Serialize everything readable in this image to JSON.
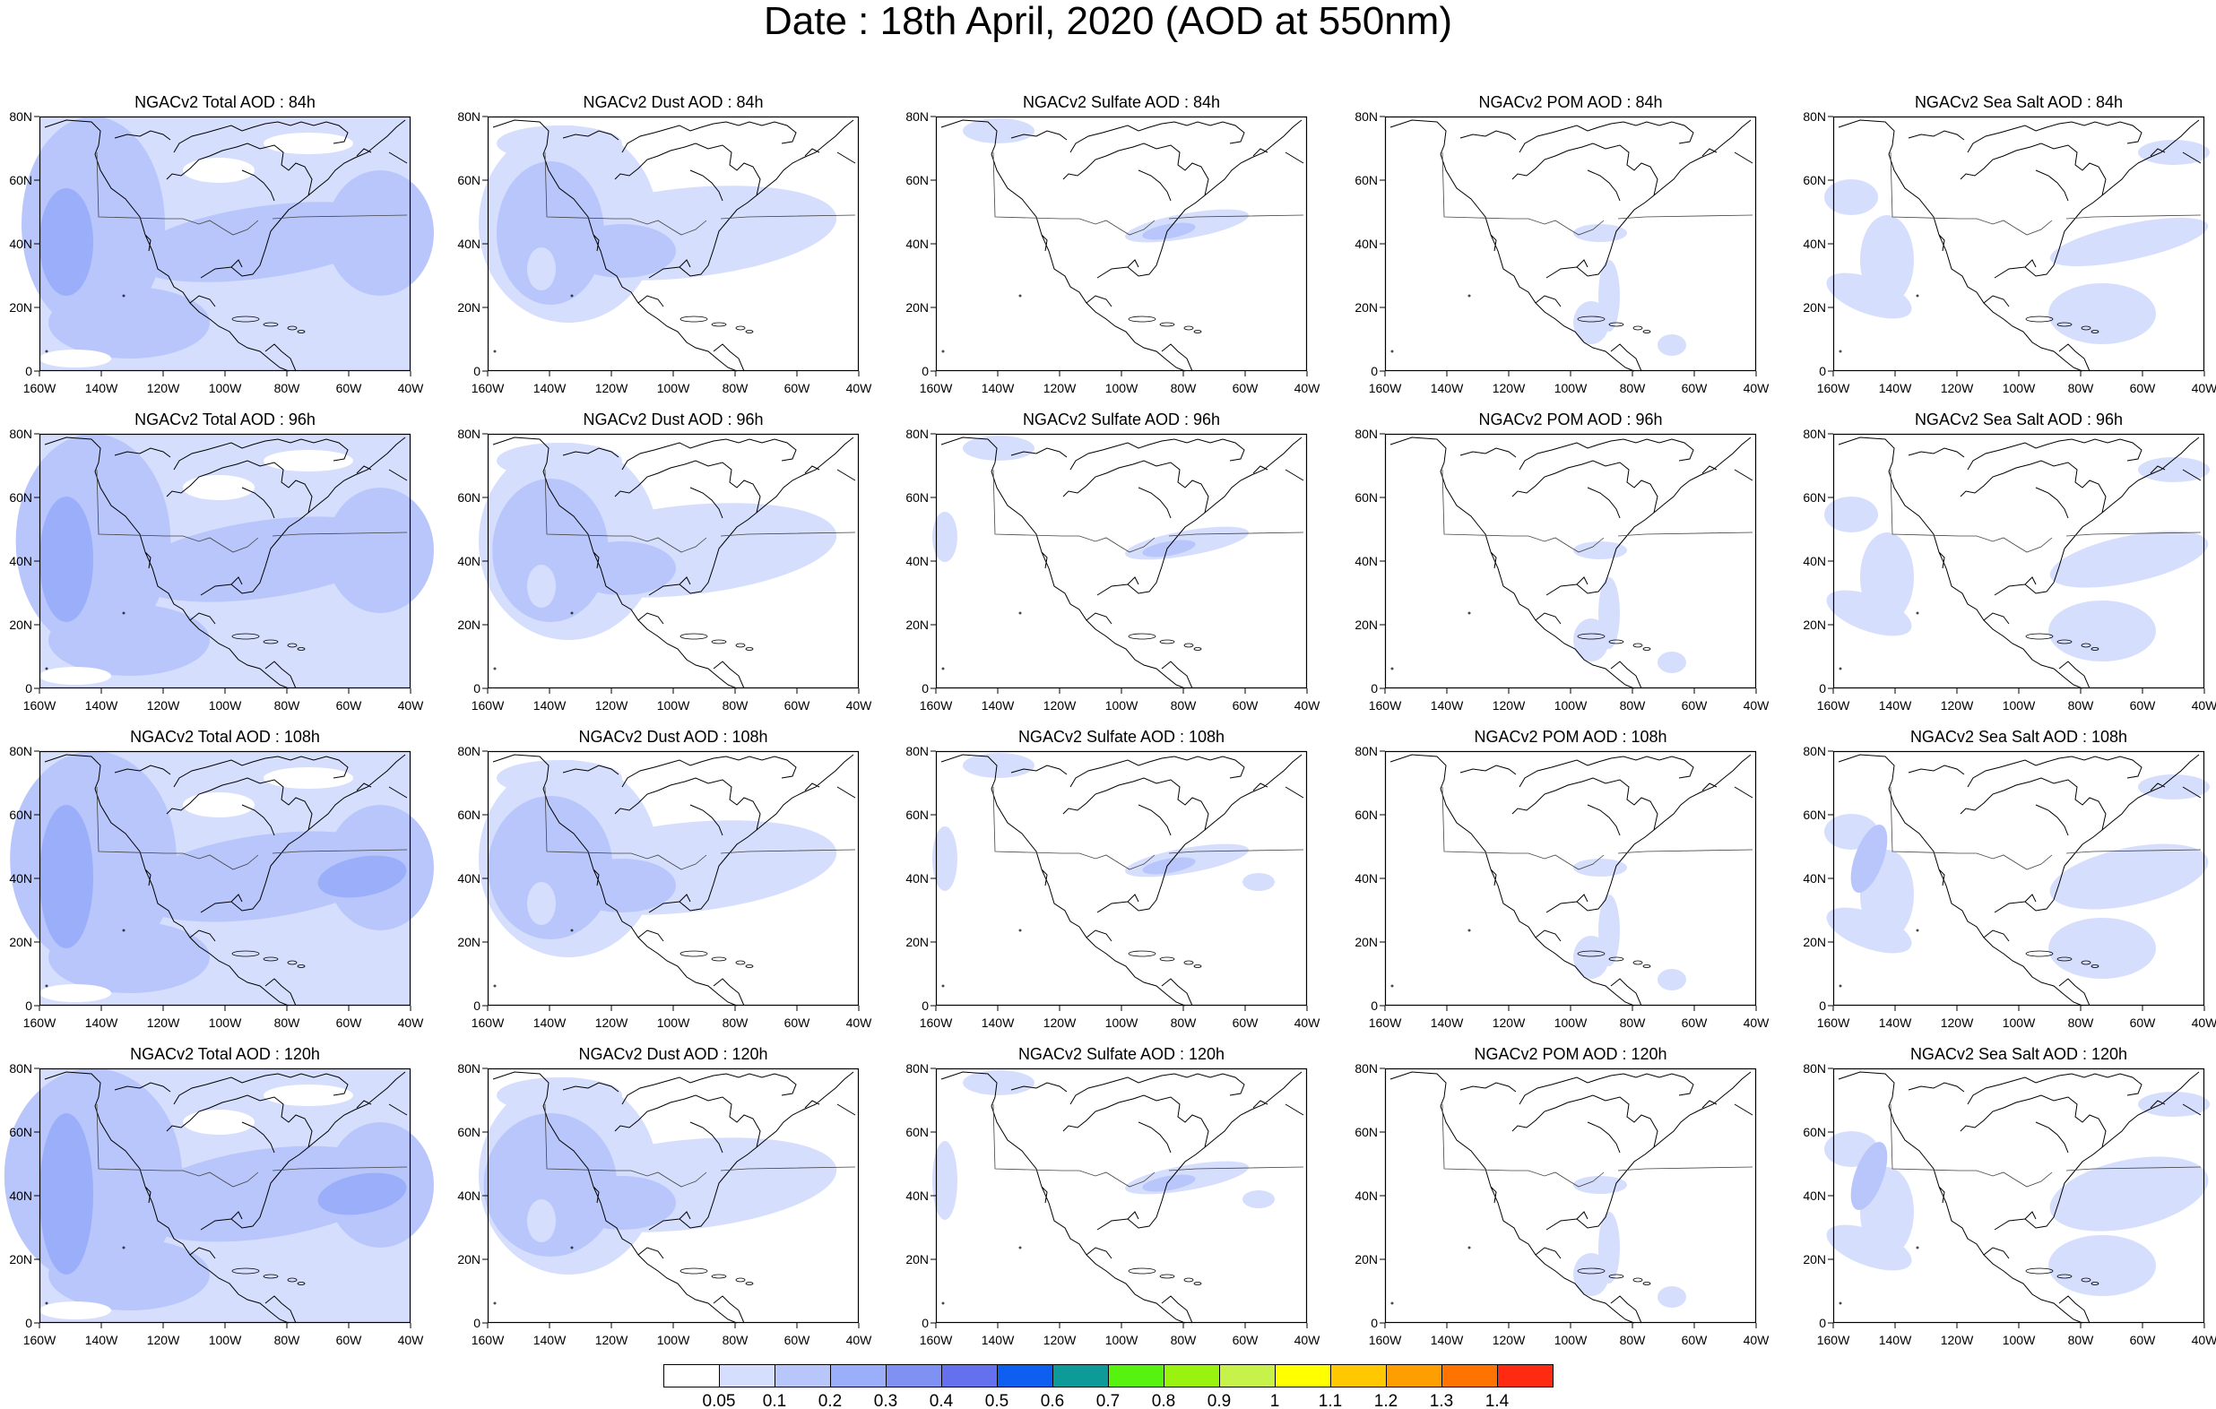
{
  "title": "Date : 18th April, 2020 (AOD at 550nm)",
  "longitude_ticks": [
    "160W",
    "140W",
    "120W",
    "100W",
    "80W",
    "60W",
    "40W"
  ],
  "latitude_ticks": [
    "80N",
    "60N",
    "40N",
    "20N",
    "0"
  ],
  "extent": {
    "lon_min": -160,
    "lon_max": -40,
    "lat_min": 0,
    "lat_max": 80
  },
  "species": [
    "Total",
    "Dust",
    "Sulfate",
    "POM",
    "Sea Salt"
  ],
  "forecast_hours": [
    "84h",
    "96h",
    "108h",
    "120h"
  ],
  "panel_titles": [
    [
      "NGACv2 Total AOD : 84h",
      "NGACv2 Dust AOD : 84h",
      "NGACv2 Sulfate AOD : 84h",
      "NGACv2 POM AOD : 84h",
      "NGACv2 Sea Salt AOD : 84h"
    ],
    [
      "NGACv2 Total AOD : 96h",
      "NGACv2 Dust AOD : 96h",
      "NGACv2 Sulfate AOD : 96h",
      "NGACv2 POM AOD : 96h",
      "NGACv2 Sea Salt AOD : 96h"
    ],
    [
      "NGACv2 Total AOD : 108h",
      "NGACv2 Dust AOD : 108h",
      "NGACv2 Sulfate AOD : 108h",
      "NGACv2 POM AOD : 108h",
      "NGACv2 Sea Salt AOD : 108h"
    ],
    [
      "NGACv2 Total AOD : 120h",
      "NGACv2 Dust AOD : 120h",
      "NGACv2 Sulfate AOD : 120h",
      "NGACv2 POM AOD : 120h",
      "NGACv2 Sea Salt  AOD : 120h"
    ]
  ],
  "colorbar": {
    "levels": [
      "0.05",
      "0.1",
      "0.2",
      "0.3",
      "0.4",
      "0.5",
      "0.6",
      "0.7",
      "0.8",
      "0.9",
      "1",
      "1.1",
      "1.2",
      "1.3",
      "1.4"
    ],
    "colors": [
      "#ffffff",
      "#d6defd",
      "#b8c6fb",
      "#9aaef9",
      "#7f92f4",
      "#6570ee",
      "#0f5ef2",
      "#0f9a9a",
      "#57f20f",
      "#9af20f",
      "#c6f24a",
      "#ffff00",
      "#ffc800",
      "#ff9e00",
      "#ff7400",
      "#ff2a12"
    ]
  },
  "map_colors": {
    "land_outline": "#000000",
    "light_aod": "#d6defd",
    "medium_aod": "#b8c6fb",
    "high_aod": "#9aaef9"
  }
}
